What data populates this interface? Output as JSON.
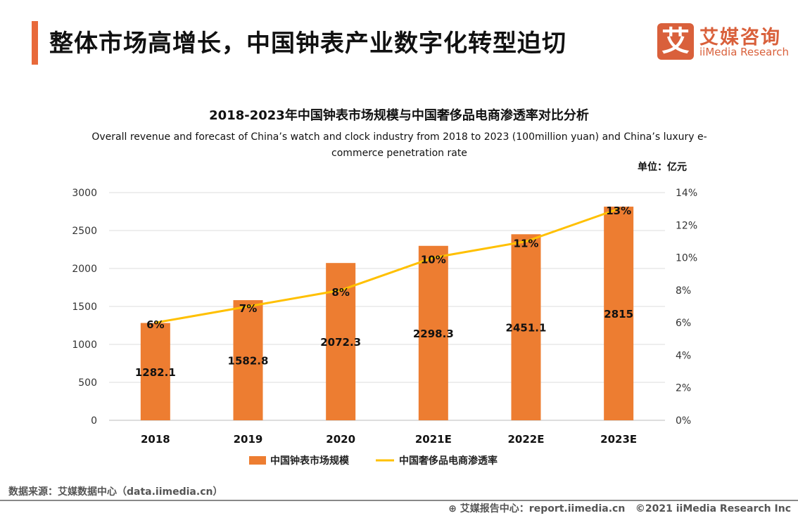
{
  "header": {
    "title": "整体市场高增长，中国钟表产业数字化转型迫切",
    "accent_color": "#e8693a"
  },
  "logo": {
    "mark": "艾",
    "cn": "艾媒咨询",
    "en": "iiMedia Research",
    "color": "#d9603b"
  },
  "chart_data": {
    "type": "bar",
    "title": "2018-2023年中国钟表市场规模与中国奢侈品电商渗透率对比分析",
    "subtitle": "Overall revenue and forecast of China’s watch and clock industry from 2018 to 2023 (100million yuan) and China’s luxury e-commerce penetration rate",
    "unit": "单位：亿元",
    "categories": [
      "2018",
      "2019",
      "2020",
      "2021E",
      "2022E",
      "2023E"
    ],
    "series": [
      {
        "name": "中国钟表市场规模",
        "type": "bar",
        "axis": "left",
        "color": "#ed7d31",
        "values": [
          1282.1,
          1582.8,
          2072.3,
          2298.3,
          2451.1,
          2815
        ],
        "labels": [
          "1282.1",
          "1582.8",
          "2072.3",
          "2298.3",
          "2451.1",
          "2815"
        ]
      },
      {
        "name": "中国奢侈品电商渗透率",
        "type": "line",
        "axis": "right",
        "color": "#ffc000",
        "values": [
          6,
          7,
          8,
          10,
          11,
          13
        ],
        "labels": [
          "6%",
          "7%",
          "8%",
          "10%",
          "11%",
          "13%"
        ]
      }
    ],
    "ylim": [
      0,
      3000
    ],
    "yticks": [
      "0",
      "500",
      "1000",
      "1500",
      "2000",
      "2500",
      "3000"
    ],
    "y2lim": [
      0,
      14
    ],
    "y2ticks": [
      "0%",
      "2%",
      "4%",
      "6%",
      "8%",
      "10%",
      "12%",
      "14%"
    ],
    "grid": true,
    "legend": "bottom"
  },
  "footer": {
    "source": "数据来源：艾媒数据中心（data.iimedia.cn）",
    "report": "艾媒报告中心：report.iimedia.cn",
    "copyright": "©2021  iiMedia Research  Inc"
  }
}
